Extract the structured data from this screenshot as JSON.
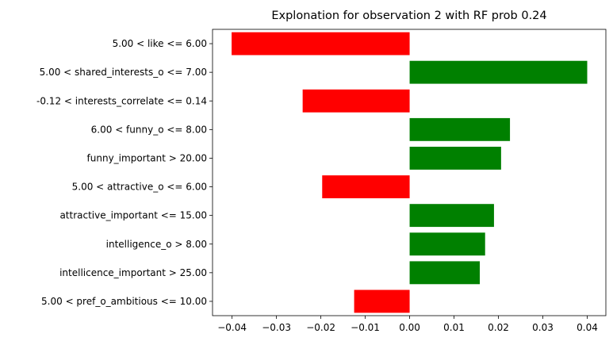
{
  "chart_data": {
    "type": "bar",
    "orientation": "horizontal",
    "title": "Explonation for observation 2 with RF prob 0.24",
    "xlabel": "",
    "ylabel": "",
    "xlim": [
      -0.0444,
      0.0442
    ],
    "x_ticks": [
      -0.04,
      -0.03,
      -0.02,
      -0.01,
      0.0,
      0.01,
      0.02,
      0.03,
      0.04
    ],
    "x_tick_labels": [
      "−0.04",
      "−0.03",
      "−0.02",
      "−0.01",
      "0.00",
      "0.01",
      "0.02",
      "0.03",
      "0.04"
    ],
    "categories": [
      "5.00 < like <= 6.00",
      "5.00 < shared_interests_o <= 7.00",
      "-0.12 < interests_correlate <= 0.14",
      "6.00 < funny_o <= 8.00",
      "funny_important > 20.00",
      "5.00 < attractive_o <= 6.00",
      "attractive_important <= 15.00",
      "intelligence_o > 8.00",
      "intellicence_important > 25.00",
      "5.00 < pref_o_ambitious <= 10.00"
    ],
    "values": [
      -0.0401,
      0.04,
      -0.0241,
      0.0226,
      0.0206,
      -0.0197,
      0.019,
      0.017,
      0.0158,
      -0.0125
    ],
    "colors": {
      "negative": "#ff0000",
      "positive": "#008000",
      "axis": "#000000"
    },
    "grid": false,
    "legend": "none"
  }
}
